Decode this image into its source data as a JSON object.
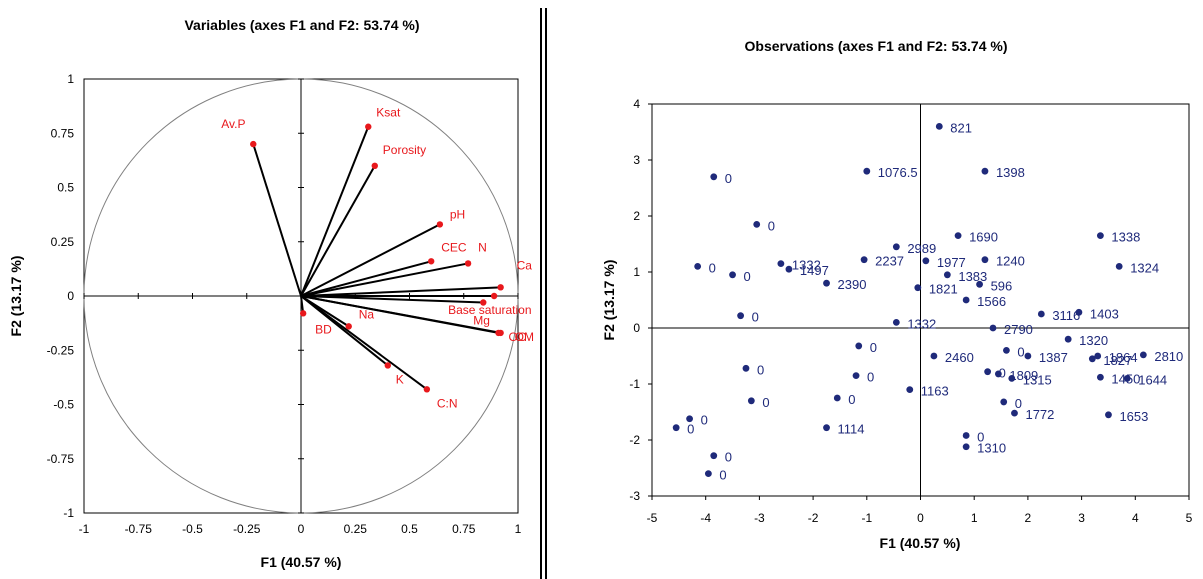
{
  "chart_data": [
    {
      "type": "scatter",
      "subtype": "correlation-circle",
      "title": "Variables (axes F1 and F2: 53.74 %)",
      "xlabel": "F1 (40.57 %)",
      "ylabel": "F2 (13.17 %)",
      "xlim": [
        -1,
        1
      ],
      "ylim": [
        -1,
        1
      ],
      "xticks": [
        "-1",
        "-0.75",
        "-0.5",
        "-0.25",
        "0",
        "0.25",
        "0.5",
        "0.75",
        "1"
      ],
      "yticks": [
        "1",
        "0.75",
        "0.5",
        "0.25",
        "0",
        "-0.25",
        "-0.5",
        "-0.75",
        "-1"
      ],
      "point_color": "#e8181c",
      "vector_color": "#000000",
      "points": [
        {
          "label": "Av.P",
          "x": -0.22,
          "y": 0.7
        },
        {
          "label": "Ksat",
          "x": 0.31,
          "y": 0.78
        },
        {
          "label": "Porosity",
          "x": 0.34,
          "y": 0.6
        },
        {
          "label": "pH",
          "x": 0.64,
          "y": 0.33
        },
        {
          "label": "CEC",
          "x": 0.6,
          "y": 0.16
        },
        {
          "label": "N",
          "x": 0.77,
          "y": 0.15
        },
        {
          "label": "Ca",
          "x": 0.92,
          "y": 0.04
        },
        {
          "label": "Base saturation",
          "x": 0.89,
          "y": 0.0
        },
        {
          "label": "Mg",
          "x": 0.84,
          "y": -0.03
        },
        {
          "label": "OC",
          "x": 0.91,
          "y": -0.17
        },
        {
          "label": "OM",
          "x": 0.92,
          "y": -0.17
        },
        {
          "label": "BD",
          "x": 0.01,
          "y": -0.08
        },
        {
          "label": "Na",
          "x": 0.22,
          "y": -0.14
        },
        {
          "label": "K",
          "x": 0.4,
          "y": -0.32
        },
        {
          "label": "C:N",
          "x": 0.58,
          "y": -0.43
        }
      ]
    },
    {
      "type": "scatter",
      "title": "Observations (axes F1 and F2: 53.74 %)",
      "xlabel": "F1 (40.57 %)",
      "ylabel": "F2 (13.17 %)",
      "xlim": [
        -5,
        5
      ],
      "ylim": [
        -3,
        4
      ],
      "xticks": [
        "-5",
        "-4",
        "-3",
        "-2",
        "-1",
        "0",
        "1",
        "2",
        "3",
        "4",
        "5"
      ],
      "yticks": [
        "4",
        "3",
        "2",
        "1",
        "0",
        "-1",
        "-2",
        "-3"
      ],
      "point_color": "#1f2a7a",
      "points": [
        {
          "label": "821",
          "x": 0.35,
          "y": 3.6
        },
        {
          "label": "1076.5",
          "x": -1.0,
          "y": 2.8
        },
        {
          "label": "1398",
          "x": 1.2,
          "y": 2.8
        },
        {
          "label": "0",
          "x": -3.85,
          "y": 2.7
        },
        {
          "label": "0",
          "x": -3.05,
          "y": 1.85
        },
        {
          "label": "1690",
          "x": 0.7,
          "y": 1.65
        },
        {
          "label": "1338",
          "x": 3.35,
          "y": 1.65
        },
        {
          "label": "2989",
          "x": -0.45,
          "y": 1.45
        },
        {
          "label": "2237",
          "x": -1.05,
          "y": 1.22
        },
        {
          "label": "1977",
          "x": 0.1,
          "y": 1.2
        },
        {
          "label": "1240",
          "x": 1.2,
          "y": 1.22
        },
        {
          "label": "1324",
          "x": 3.7,
          "y": 1.1
        },
        {
          "label": "1332",
          "x": -2.6,
          "y": 1.15
        },
        {
          "label": "1497",
          "x": -2.45,
          "y": 1.05
        },
        {
          "label": "0",
          "x": -4.15,
          "y": 1.1
        },
        {
          "label": "0",
          "x": -3.5,
          "y": 0.95
        },
        {
          "label": "1383",
          "x": 0.5,
          "y": 0.95
        },
        {
          "label": "2390",
          "x": -1.75,
          "y": 0.8
        },
        {
          "label": "1821",
          "x": -0.05,
          "y": 0.72
        },
        {
          "label": "596",
          "x": 1.1,
          "y": 0.78
        },
        {
          "label": "1566",
          "x": 0.85,
          "y": 0.5
        },
        {
          "label": "3116",
          "x": 2.25,
          "y": 0.25
        },
        {
          "label": "1403",
          "x": 2.95,
          "y": 0.28
        },
        {
          "label": "0",
          "x": -3.35,
          "y": 0.22
        },
        {
          "label": "1332",
          "x": -0.45,
          "y": 0.1
        },
        {
          "label": "2790",
          "x": 1.35,
          "y": 0.0
        },
        {
          "label": "1320",
          "x": 2.75,
          "y": -0.2
        },
        {
          "label": "0",
          "x": -1.15,
          "y": -0.32
        },
        {
          "label": "0",
          "x": 1.6,
          "y": -0.4
        },
        {
          "label": "2460",
          "x": 0.25,
          "y": -0.5
        },
        {
          "label": "1387",
          "x": 2.0,
          "y": -0.5
        },
        {
          "label": "1827",
          "x": 3.2,
          "y": -0.55
        },
        {
          "label": "2810",
          "x": 4.15,
          "y": -0.48
        },
        {
          "label": "1864",
          "x": 3.3,
          "y": -0.5
        },
        {
          "label": "0",
          "x": -3.25,
          "y": -0.72
        },
        {
          "label": "0",
          "x": 1.25,
          "y": -0.78
        },
        {
          "label": "1809",
          "x": 1.45,
          "y": -0.82
        },
        {
          "label": "1315",
          "x": 1.7,
          "y": -0.9
        },
        {
          "label": "1450",
          "x": 3.35,
          "y": -0.88
        },
        {
          "label": "1644",
          "x": 3.85,
          "y": -0.9
        },
        {
          "label": "0",
          "x": -1.2,
          "y": -0.85
        },
        {
          "label": "0",
          "x": -3.15,
          "y": -1.3
        },
        {
          "label": "1163",
          "x": -0.2,
          "y": -1.1
        },
        {
          "label": "0",
          "x": -1.55,
          "y": -1.25
        },
        {
          "label": "0",
          "x": 1.55,
          "y": -1.32
        },
        {
          "label": "1772",
          "x": 1.75,
          "y": -1.52
        },
        {
          "label": "1653",
          "x": 3.5,
          "y": -1.55
        },
        {
          "label": "0",
          "x": -4.55,
          "y": -1.78
        },
        {
          "label": "0",
          "x": -4.3,
          "y": -1.62
        },
        {
          "label": "1114",
          "x": -1.75,
          "y": -1.78
        },
        {
          "label": "0",
          "x": 0.85,
          "y": -1.92
        },
        {
          "label": "1310",
          "x": 0.85,
          "y": -2.12
        },
        {
          "label": "0",
          "x": -3.85,
          "y": -2.28
        },
        {
          "label": "0",
          "x": -3.95,
          "y": -2.6
        }
      ]
    }
  ]
}
